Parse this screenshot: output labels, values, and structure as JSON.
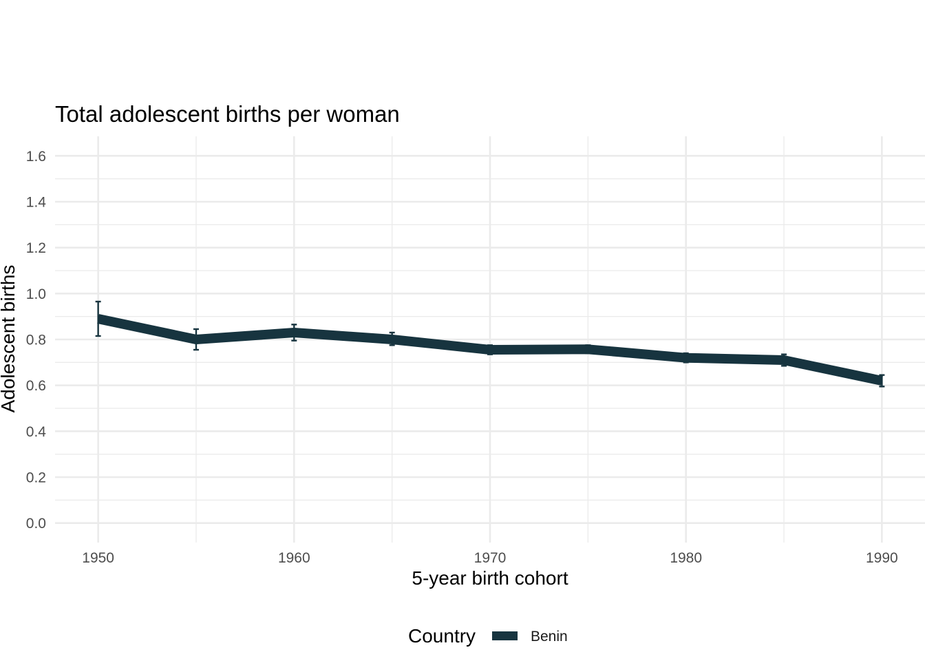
{
  "chart_data": {
    "type": "line",
    "title": "Total adolescent births per woman",
    "xlabel": "5-year birth cohort",
    "ylabel": "Adolescent births",
    "x": [
      1950,
      1955,
      1960,
      1965,
      1970,
      1975,
      1980,
      1985,
      1990
    ],
    "xlim": [
      1947.8,
      1992.2
    ],
    "ylim": [
      -0.085,
      1.685
    ],
    "x_ticks": [
      "1950",
      "1960",
      "1970",
      "1980",
      "1990"
    ],
    "y_ticks": [
      "0.0",
      "0.2",
      "0.4",
      "0.6",
      "0.8",
      "1.0",
      "1.2",
      "1.4",
      "1.6"
    ],
    "grid": true,
    "legend": {
      "title": "Country",
      "position": "bottom"
    },
    "series": [
      {
        "name": "Benin",
        "color": "#17343f",
        "values": [
          0.89,
          0.8,
          0.83,
          0.8,
          0.755,
          0.757,
          0.72,
          0.71,
          0.62
        ],
        "lower": [
          0.815,
          0.755,
          0.795,
          0.775,
          0.735,
          0.74,
          0.7,
          0.685,
          0.595
        ],
        "upper": [
          0.965,
          0.845,
          0.865,
          0.83,
          0.775,
          0.775,
          0.74,
          0.735,
          0.645
        ]
      }
    ]
  }
}
